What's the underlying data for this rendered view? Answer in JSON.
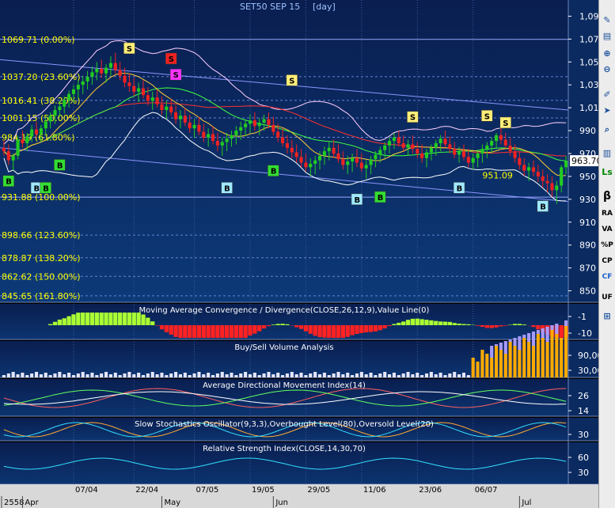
{
  "header": {
    "title": "SET50 SEP 15",
    "interval": "[day]"
  },
  "colors": {
    "bg_top": "#0a1e50",
    "bg_bottom": "#0c3774",
    "grid": "#3a5a9a",
    "candle_up": "#22cc22",
    "candle_down": "#ee2222",
    "fib_text": "#ffff00",
    "axis_text": "#ffffff"
  },
  "main_axis": {
    "ticks": [
      "1,090",
      "1,070",
      "1,050",
      "1,030",
      "1,010",
      "990",
      "970",
      "950",
      "930",
      "910",
      "890",
      "870",
      "850"
    ],
    "last_price": "963.70",
    "note_price": "951.09"
  },
  "fib_levels": [
    {
      "value": 1069.71,
      "label": "1069.71 (0.00%)"
    },
    {
      "value": 1037.2,
      "label": "1037.20 (23.60%)"
    },
    {
      "value": 1016.41,
      "label": "1016.41 (38.20%)"
    },
    {
      "value": 1001.15,
      "label": "1001.15 (50.00%)"
    },
    {
      "value": 984.19,
      "label": "984.19 (61.80%)"
    },
    {
      "value": 931.88,
      "label": "931.88 (100.00%)"
    },
    {
      "value": 898.66,
      "label": "898.66 (123.60%)"
    },
    {
      "value": 878.87,
      "label": "878.87 (138.20%)"
    },
    {
      "value": 862.62,
      "label": "862.62 (150.00%)"
    },
    {
      "value": 845.65,
      "label": "845.65 (161.80%)"
    }
  ],
  "signals": [
    {
      "t": "B",
      "i": 1,
      "price": 946
    },
    {
      "t": "B",
      "i": 7,
      "price": 940
    },
    {
      "t": "B",
      "i": 9,
      "price": 940
    },
    {
      "t": "B",
      "i": 12,
      "price": 960
    },
    {
      "t": "S",
      "i": 27,
      "price": 1062
    },
    {
      "t": "S",
      "i": 36,
      "price": 1053
    },
    {
      "t": "S",
      "i": 37,
      "price": 1039
    },
    {
      "t": "B",
      "i": 48,
      "price": 940
    },
    {
      "t": "B",
      "i": 58,
      "price": 955
    },
    {
      "t": "S",
      "i": 62,
      "price": 1034
    },
    {
      "t": "B",
      "i": 76,
      "price": 930
    },
    {
      "t": "B",
      "i": 81,
      "price": 932
    },
    {
      "t": "S",
      "i": 88,
      "price": 1002
    },
    {
      "t": "B",
      "i": 98,
      "price": 940
    },
    {
      "t": "S",
      "i": 104,
      "price": 1003
    },
    {
      "t": "S",
      "i": 108,
      "price": 997
    },
    {
      "t": "B",
      "i": 116,
      "price": 924
    }
  ],
  "chart_data": [
    {
      "type": "candlestick",
      "title": "SET50 SEP 15",
      "ylim": [
        840,
        1100
      ],
      "x_ticks": [
        "07/04",
        "22/04",
        "07/05",
        "19/05",
        "29/05",
        "11/06",
        "23/06",
        "06/07"
      ],
      "x_months": [
        "2558",
        "Apr",
        "May",
        "Jun",
        "Jul"
      ],
      "ohlc": [
        [
          975,
          982,
          968,
          972
        ],
        [
          972,
          978,
          960,
          964
        ],
        [
          964,
          970,
          955,
          968
        ],
        [
          968,
          985,
          965,
          982
        ],
        [
          982,
          990,
          975,
          979
        ],
        [
          979,
          988,
          972,
          985
        ],
        [
          985,
          995,
          980,
          991
        ],
        [
          991,
          998,
          984,
          987
        ],
        [
          987,
          995,
          980,
          992
        ],
        [
          992,
          1002,
          986,
          998
        ],
        [
          998,
          1006,
          992,
          1003
        ],
        [
          1003,
          1012,
          996,
          1008
        ],
        [
          1008,
          1016,
          1002,
          1011
        ],
        [
          1011,
          1020,
          1005,
          1017
        ],
        [
          1017,
          1025,
          1010,
          1022
        ],
        [
          1022,
          1030,
          1015,
          1026
        ],
        [
          1026,
          1034,
          1018,
          1030
        ],
        [
          1030,
          1038,
          1022,
          1033
        ],
        [
          1033,
          1042,
          1026,
          1037
        ],
        [
          1037,
          1046,
          1030,
          1041
        ],
        [
          1041,
          1050,
          1034,
          1044
        ],
        [
          1044,
          1052,
          1036,
          1040
        ],
        [
          1040,
          1048,
          1032,
          1045
        ],
        [
          1045,
          1055,
          1038,
          1049
        ],
        [
          1049,
          1058,
          1040,
          1043
        ],
        [
          1043,
          1050,
          1034,
          1038
        ],
        [
          1038,
          1045,
          1028,
          1032
        ],
        [
          1032,
          1040,
          1024,
          1029
        ],
        [
          1029,
          1036,
          1020,
          1024
        ],
        [
          1024,
          1032,
          1015,
          1027
        ],
        [
          1027,
          1034,
          1018,
          1021
        ],
        [
          1021,
          1028,
          1012,
          1016
        ],
        [
          1016,
          1024,
          1008,
          1019
        ],
        [
          1019,
          1026,
          1010,
          1013
        ],
        [
          1013,
          1020,
          1004,
          1008
        ],
        [
          1008,
          1016,
          1000,
          1011
        ],
        [
          1011,
          1018,
          1003,
          1006
        ],
        [
          1006,
          1012,
          996,
          1000
        ],
        [
          1000,
          1008,
          992,
          1003
        ],
        [
          1003,
          1010,
          994,
          997
        ],
        [
          997,
          1004,
          988,
          992
        ],
        [
          992,
          1000,
          984,
          995
        ],
        [
          995,
          1002,
          986,
          989
        ],
        [
          989,
          996,
          980,
          984
        ],
        [
          984,
          992,
          976,
          987
        ],
        [
          987,
          994,
          978,
          981
        ],
        [
          981,
          988,
          972,
          977
        ],
        [
          977,
          984,
          968,
          980
        ],
        [
          980,
          988,
          972,
          983
        ],
        [
          983,
          990,
          976,
          986
        ],
        [
          986,
          994,
          978,
          990
        ],
        [
          990,
          998,
          982,
          993
        ],
        [
          993,
          1000,
          985,
          996
        ],
        [
          996,
          1004,
          988,
          999
        ],
        [
          999,
          1006,
          990,
          994
        ],
        [
          994,
          1001,
          986,
          997
        ],
        [
          997,
          1004,
          990,
          1000
        ],
        [
          1000,
          1006,
          992,
          995
        ],
        [
          995,
          1002,
          986,
          989
        ],
        [
          989,
          996,
          980,
          984
        ],
        [
          984,
          992,
          976,
          979
        ],
        [
          979,
          986,
          970,
          975
        ],
        [
          975,
          982,
          966,
          971
        ],
        [
          971,
          978,
          962,
          967
        ],
        [
          967,
          974,
          958,
          962
        ],
        [
          962,
          970,
          954,
          958
        ],
        [
          958,
          966,
          950,
          961
        ],
        [
          961,
          968,
          952,
          964
        ],
        [
          964,
          972,
          956,
          968
        ],
        [
          968,
          976,
          960,
          972
        ],
        [
          972,
          980,
          964,
          975
        ],
        [
          975,
          982,
          966,
          970
        ],
        [
          970,
          978,
          962,
          965
        ],
        [
          965,
          972,
          956,
          960
        ],
        [
          960,
          968,
          952,
          963
        ],
        [
          963,
          970,
          954,
          966
        ],
        [
          966,
          974,
          958,
          962
        ],
        [
          962,
          970,
          954,
          957
        ],
        [
          957,
          964,
          948,
          960
        ],
        [
          960,
          968,
          952,
          965
        ],
        [
          965,
          972,
          958,
          969
        ],
        [
          969,
          976,
          962,
          973
        ],
        [
          973,
          980,
          966,
          977
        ],
        [
          977,
          984,
          970,
          981
        ],
        [
          981,
          988,
          974,
          984
        ],
        [
          984,
          990,
          976,
          979
        ],
        [
          979,
          986,
          972,
          975
        ],
        [
          975,
          982,
          968,
          978
        ],
        [
          978,
          986,
          970,
          974
        ],
        [
          974,
          980,
          966,
          970
        ],
        [
          970,
          978,
          962,
          966
        ],
        [
          966,
          974,
          958,
          971
        ],
        [
          971,
          978,
          964,
          975
        ],
        [
          975,
          982,
          968,
          979
        ],
        [
          979,
          986,
          972,
          983
        ],
        [
          983,
          990,
          976,
          978
        ],
        [
          978,
          985,
          970,
          974
        ],
        [
          974,
          980,
          966,
          969
        ],
        [
          969,
          976,
          962,
          972
        ],
        [
          972,
          978,
          964,
          967
        ],
        [
          967,
          974,
          958,
          962
        ],
        [
          962,
          970,
          956,
          966
        ],
        [
          966,
          972,
          958,
          970
        ],
        [
          970,
          978,
          962,
          974
        ],
        [
          974,
          980,
          966,
          977
        ],
        [
          977,
          984,
          970,
          981
        ],
        [
          981,
          988,
          974,
          986
        ],
        [
          986,
          992,
          978,
          982
        ],
        [
          982,
          988,
          974,
          977
        ],
        [
          977,
          984,
          968,
          972
        ],
        [
          972,
          978,
          962,
          966
        ],
        [
          966,
          972,
          956,
          960
        ],
        [
          960,
          966,
          950,
          955
        ],
        [
          955,
          962,
          946,
          958
        ],
        [
          958,
          964,
          950,
          954
        ],
        [
          954,
          960,
          945,
          950
        ],
        [
          950,
          956,
          940,
          946
        ],
        [
          946,
          952,
          936,
          944
        ],
        [
          944,
          950,
          932,
          938
        ],
        [
          938,
          946,
          926,
          942
        ],
        [
          942,
          960,
          936,
          958
        ],
        [
          958,
          968,
          952,
          963.7
        ]
      ]
    },
    {
      "type": "area",
      "title": "Moving Average Convergence / Divergence(CLOSE,26,12,9),Value Line(0)",
      "y_ticks": [
        "-1",
        "-10"
      ]
    },
    {
      "type": "bar",
      "title": "Buy/Sell Volume Analysis",
      "y_ticks": [
        "90,00",
        "30,00"
      ]
    },
    {
      "type": "line",
      "title": "Average Directional Movement Index(14)",
      "y_ticks": [
        "26",
        "14"
      ]
    },
    {
      "type": "line",
      "title": "Slow Stochastics Oscillator(9,3,3),Overbought Level(80),Oversold Level(20)",
      "y_ticks": [
        "30"
      ]
    },
    {
      "type": "line",
      "title": "Relative Strength Index(CLOSE,14,30,70)",
      "y_ticks": [
        "60",
        "30"
      ]
    }
  ],
  "toolbar": {
    "items": [
      "β",
      "RA",
      "VA",
      "%P",
      "CP",
      "CF",
      "UF"
    ]
  }
}
